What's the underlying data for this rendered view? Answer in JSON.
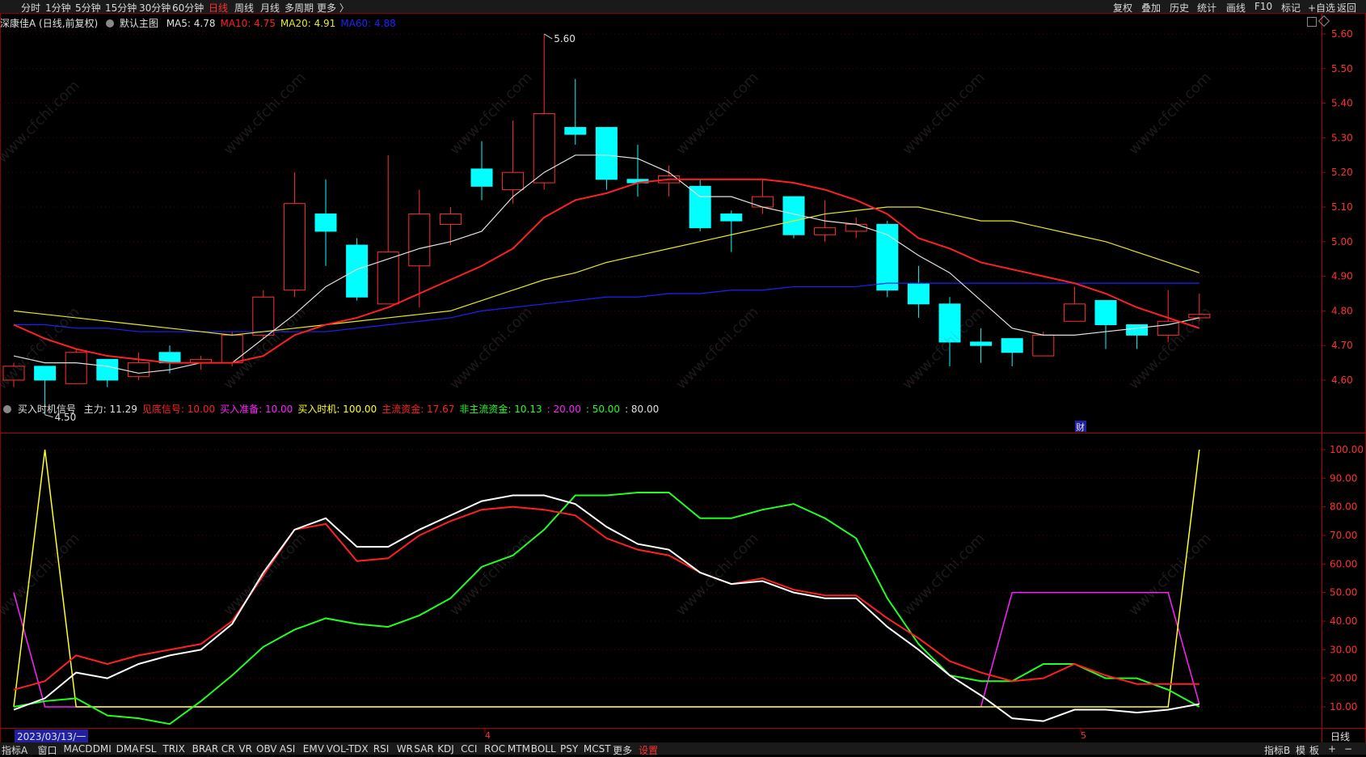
{
  "toolbar": {
    "timeframes": [
      "分时",
      "1分钟",
      "5分钟",
      "15分钟",
      "30分钟",
      "60分钟",
      "日线",
      "周线",
      "月线",
      "多周期",
      "更多 〉"
    ],
    "active_timeframe": "日线",
    "right_tools": [
      "复权",
      "叠加",
      "历史",
      "统计",
      "画线",
      "F10",
      "标记",
      "+自选",
      "返回"
    ]
  },
  "main_panel": {
    "stock_name": "深康佳A (日线,前复权)",
    "chart_name": "默认主图",
    "ma": [
      {
        "label": "MA5: 4.78",
        "color": "#e0e0e0"
      },
      {
        "label": "MA10: 4.75",
        "color": "#ff2020"
      },
      {
        "label": "MA20: 4.91",
        "color": "#e8e820"
      },
      {
        "label": "MA60: 4.88",
        "color": "#2020ff"
      }
    ],
    "high_label": "5.60",
    "low_label": "4.50",
    "finance_mark": "财"
  },
  "indicator_panel": {
    "title": "买入时机信号",
    "items": [
      {
        "label": "主力: 11.29",
        "color": "#e0e0e0"
      },
      {
        "label": "见底信号: 10.00",
        "color": "#ff2020"
      },
      {
        "label": "买入准备: 10.00",
        "color": "#ff20ff"
      },
      {
        "label": "买入时机: 100.00",
        "color": "#ffff20"
      },
      {
        "label": "主流资金: 17.67",
        "color": "#ff2020"
      },
      {
        "label": "非主流资金: 10.13",
        "color": "#20ff20"
      },
      {
        "label": ": 20.00",
        "color": "#ff20ff"
      },
      {
        "label": ": 50.00",
        "color": "#20ff20"
      },
      {
        "label": ": 80.00",
        "color": "#e0e0e0"
      }
    ]
  },
  "date_label": "2023/03/13/一",
  "x_month_labels": [
    "4",
    "5"
  ],
  "period_label": "日线",
  "bottom_tabs": [
    "指标A",
    "窗口",
    "MACD",
    "DMI",
    "DMA",
    "FSL",
    "TRIX",
    "BRAR",
    "CR",
    "VR",
    "OBV",
    "ASI",
    "EMV",
    "VOL-TDX",
    "RSI",
    "WR",
    "SAR",
    "KDJ",
    "CCI",
    "ROC",
    "MTM",
    "BOLL",
    "PSY",
    "MCST",
    "更多",
    "设置"
  ],
  "bottom_right": [
    "指标B",
    "模",
    "板",
    "+",
    "−"
  ],
  "watermark": "www.cfchi.com",
  "colors": {
    "up": "#ff3030",
    "down": "#00ffff",
    "ma5": "#e0e0e0",
    "ma10": "#ff2020",
    "ma20": "#e8e820",
    "ma60": "#2020ff"
  },
  "chart_data": {
    "type": "candlestick",
    "y_ticks": [
      "5.60",
      "5.50",
      "5.40",
      "5.30",
      "5.20",
      "5.10",
      "5.00",
      "4.90",
      "4.80",
      "4.70",
      "4.60"
    ],
    "ylim": [
      4.5,
      5.62
    ],
    "candles": [
      [
        4.6,
        4.64,
        4.65,
        4.58
      ],
      [
        4.64,
        4.6,
        4.64,
        4.5
      ],
      [
        4.59,
        4.68,
        4.69,
        4.59
      ],
      [
        4.66,
        4.6,
        4.66,
        4.58
      ],
      [
        4.61,
        4.65,
        4.68,
        4.6
      ],
      [
        4.68,
        4.65,
        4.7,
        4.62
      ],
      [
        4.65,
        4.66,
        4.67,
        4.63
      ],
      [
        4.65,
        4.73,
        4.74,
        4.64
      ],
      [
        4.73,
        4.84,
        4.86,
        4.72
      ],
      [
        4.86,
        5.11,
        5.2,
        4.84
      ],
      [
        5.08,
        5.03,
        5.18,
        4.93
      ],
      [
        4.99,
        4.84,
        5.01,
        4.83
      ],
      [
        4.82,
        4.97,
        5.25,
        4.82
      ],
      [
        4.93,
        5.08,
        5.15,
        4.81
      ],
      [
        5.05,
        5.08,
        5.1,
        4.99
      ],
      [
        5.21,
        5.16,
        5.29,
        5.12
      ],
      [
        5.15,
        5.2,
        5.35,
        5.11
      ],
      [
        5.17,
        5.37,
        5.6,
        5.15
      ],
      [
        5.33,
        5.31,
        5.47,
        5.28
      ],
      [
        5.33,
        5.18,
        5.33,
        5.15
      ],
      [
        5.18,
        5.17,
        5.28,
        5.13
      ],
      [
        5.17,
        5.19,
        5.22,
        5.13
      ],
      [
        5.16,
        5.04,
        5.18,
        5.03
      ],
      [
        5.08,
        5.06,
        5.09,
        4.97
      ],
      [
        5.1,
        5.13,
        5.18,
        5.08
      ],
      [
        5.13,
        5.02,
        5.13,
        5.01
      ],
      [
        5.02,
        5.04,
        5.12,
        5.0
      ],
      [
        5.03,
        5.05,
        5.07,
        5.01
      ],
      [
        5.05,
        4.86,
        5.06,
        4.84
      ],
      [
        4.88,
        4.82,
        4.93,
        4.78
      ],
      [
        4.82,
        4.71,
        4.84,
        4.64
      ],
      [
        4.71,
        4.7,
        4.75,
        4.65
      ],
      [
        4.72,
        4.68,
        4.72,
        4.64
      ],
      [
        4.67,
        4.73,
        4.74,
        4.67
      ],
      [
        4.77,
        4.82,
        4.87,
        4.77
      ],
      [
        4.83,
        4.76,
        4.83,
        4.69
      ],
      [
        4.76,
        4.73,
        4.76,
        4.69
      ],
      [
        4.73,
        4.77,
        4.86,
        4.71
      ],
      [
        4.78,
        4.79,
        4.85,
        4.77
      ]
    ],
    "ma5": [
      4.67,
      4.65,
      4.65,
      4.64,
      4.62,
      4.63,
      4.65,
      4.65,
      4.72,
      4.79,
      4.87,
      4.92,
      4.95,
      4.98,
      5.0,
      5.03,
      5.13,
      5.2,
      5.25,
      5.25,
      5.24,
      5.2,
      5.13,
      5.13,
      5.1,
      5.08,
      5.06,
      5.05,
      5.02,
      4.96,
      4.91,
      4.83,
      4.75,
      4.73,
      4.73,
      4.74,
      4.75,
      4.76,
      4.78
    ],
    "ma10": [
      4.76,
      4.72,
      4.69,
      4.67,
      4.66,
      4.65,
      4.65,
      4.65,
      4.67,
      4.73,
      4.76,
      4.78,
      4.81,
      4.85,
      4.89,
      4.93,
      4.98,
      5.07,
      5.12,
      5.14,
      5.17,
      5.18,
      5.18,
      5.18,
      5.18,
      5.17,
      5.15,
      5.12,
      5.08,
      5.01,
      4.98,
      4.94,
      4.92,
      4.9,
      4.88,
      4.85,
      4.81,
      4.78,
      4.75
    ],
    "ma20": [
      4.8,
      4.79,
      4.78,
      4.77,
      4.76,
      4.75,
      4.74,
      4.73,
      4.74,
      4.75,
      4.76,
      4.77,
      4.78,
      4.79,
      4.8,
      4.83,
      4.86,
      4.89,
      4.91,
      4.94,
      4.96,
      4.98,
      5.0,
      5.02,
      5.04,
      5.06,
      5.08,
      5.09,
      5.1,
      5.1,
      5.08,
      5.06,
      5.06,
      5.04,
      5.02,
      5.0,
      4.97,
      4.94,
      4.91
    ],
    "ma60": [
      4.76,
      4.76,
      4.75,
      4.75,
      4.74,
      4.74,
      4.74,
      4.74,
      4.74,
      4.74,
      4.74,
      4.75,
      4.76,
      4.77,
      4.78,
      4.8,
      4.81,
      4.82,
      4.83,
      4.84,
      4.84,
      4.85,
      4.85,
      4.86,
      4.86,
      4.87,
      4.87,
      4.87,
      4.88,
      4.88,
      4.88,
      4.88,
      4.88,
      4.88,
      4.88,
      4.88,
      4.88,
      4.88,
      4.88
    ],
    "ind_ticks": [
      "100.00",
      "90.00",
      "80.00",
      "70.00",
      "60.00",
      "50.00",
      "40.00",
      "30.00",
      "20.00",
      "10.00"
    ],
    "ind_ylim": [
      3,
      103
    ],
    "white": [
      9,
      13,
      22,
      20,
      25,
      28,
      30,
      39,
      57,
      72,
      76,
      66,
      66,
      72,
      77,
      82,
      84,
      84,
      81,
      73,
      67,
      65,
      57,
      53,
      54,
      50,
      48,
      48,
      38,
      30,
      21,
      14,
      6,
      5,
      9,
      9,
      8,
      9,
      11
    ],
    "red": [
      16,
      19,
      28,
      25,
      28,
      30,
      32,
      40,
      56,
      72,
      74,
      61,
      62,
      70,
      75,
      79,
      80,
      79,
      77,
      69,
      65,
      63,
      57,
      53,
      55,
      51,
      49,
      49,
      41,
      34,
      26,
      22,
      19,
      20,
      25,
      21,
      18,
      18,
      18
    ],
    "green": [
      10,
      12,
      13,
      7,
      6,
      4,
      12,
      21,
      31,
      37,
      41,
      39,
      38,
      42,
      48,
      59,
      63,
      72,
      84,
      84,
      85,
      85,
      76,
      76,
      79,
      81,
      76,
      69,
      48,
      32,
      21,
      19,
      19,
      25,
      25,
      20,
      20,
      16,
      10
    ],
    "yellow": [
      10,
      100,
      10,
      10,
      10,
      10,
      10,
      10,
      10,
      10,
      10,
      10,
      10,
      10,
      10,
      10,
      10,
      10,
      10,
      10,
      10,
      10,
      10,
      10,
      10,
      10,
      10,
      10,
      10,
      10,
      10,
      10,
      10,
      10,
      10,
      10,
      10,
      10,
      100
    ],
    "magenta": [
      50,
      10,
      10,
      10,
      10,
      10,
      10,
      10,
      10,
      10,
      10,
      10,
      10,
      10,
      10,
      10,
      10,
      10,
      10,
      10,
      10,
      10,
      10,
      10,
      10,
      10,
      10,
      10,
      10,
      10,
      10,
      10,
      50,
      50,
      50,
      50,
      50,
      50,
      11
    ]
  }
}
